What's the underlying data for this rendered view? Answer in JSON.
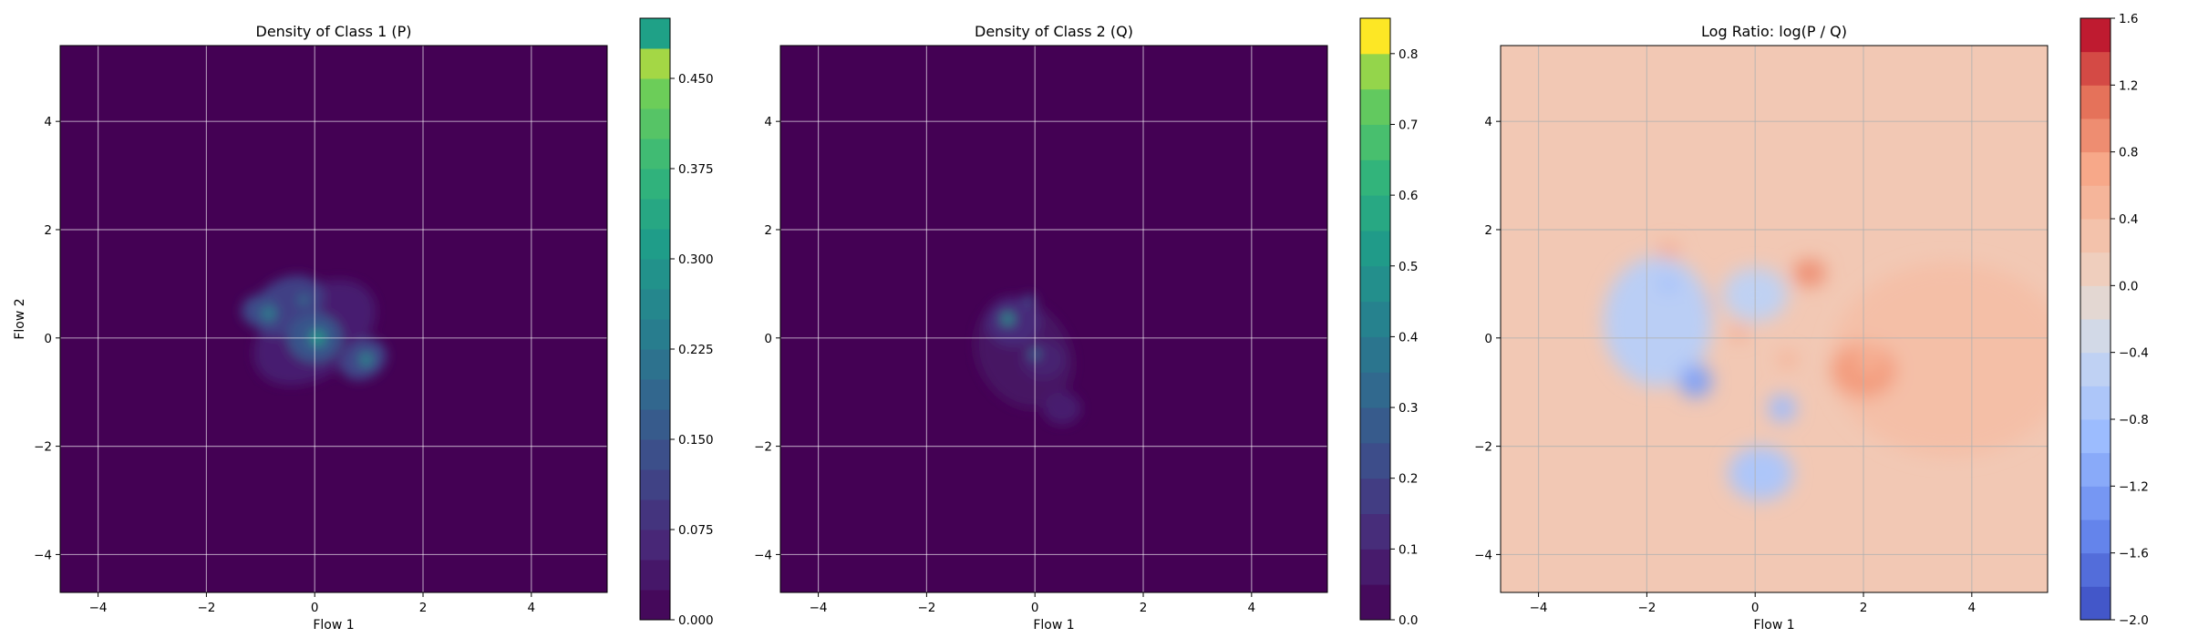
{
  "chart_data": [
    {
      "type": "heatmap",
      "title": "Density of Class 1 (P)",
      "xlabel": "Flow 1",
      "ylabel": "Flow 2",
      "xlim": [
        -4.7,
        5.4
      ],
      "ylim": [
        -4.7,
        5.4
      ],
      "xticks": [
        -4,
        -2,
        0,
        2,
        4
      ],
      "yticks": [
        -4,
        -2,
        0,
        2,
        4
      ],
      "grid": true,
      "colormap": "viridis",
      "colorbar": {
        "range": [
          0.0,
          0.5
        ],
        "ticks": [
          0.0,
          0.075,
          0.15,
          0.225,
          0.3,
          0.375,
          0.45
        ],
        "tick_labels": [
          "0.000",
          "0.075",
          "0.150",
          "0.225",
          "0.300",
          "0.375",
          "0.450"
        ],
        "levels": 20,
        "top_color": "#1fa187"
      },
      "blobs": [
        {
          "x": 0.0,
          "y": 0.1,
          "sx": 1.25,
          "sy": 0.8,
          "rot": -35,
          "value": 0.05
        },
        {
          "x": -0.5,
          "y": 0.6,
          "sx": 0.7,
          "sy": 0.5,
          "rot": -30,
          "value": 0.11
        },
        {
          "x": 0.0,
          "y": 0.0,
          "sx": 0.5,
          "sy": 0.45,
          "rot": 0,
          "value": 0.15
        },
        {
          "x": 0.9,
          "y": -0.4,
          "sx": 0.45,
          "sy": 0.35,
          "rot": -30,
          "value": 0.12
        },
        {
          "x": -1.0,
          "y": 0.5,
          "sx": 0.35,
          "sy": 0.3,
          "rot": 0,
          "value": 0.13
        },
        {
          "x": 0.05,
          "y": 0.0,
          "sx": 0.14,
          "sy": 0.14,
          "rot": 0,
          "value": 0.3
        },
        {
          "x": 0.95,
          "y": -0.4,
          "sx": 0.12,
          "sy": 0.12,
          "rot": 0,
          "value": 0.26
        },
        {
          "x": -0.85,
          "y": 0.45,
          "sx": 0.12,
          "sy": 0.12,
          "rot": 0,
          "value": 0.25
        },
        {
          "x": -0.2,
          "y": 0.7,
          "sx": 0.1,
          "sy": 0.1,
          "rot": 0,
          "value": 0.2
        }
      ]
    },
    {
      "type": "heatmap",
      "title": "Density of Class 2 (Q)",
      "xlabel": "Flow 1",
      "ylabel": "",
      "xlim": [
        -4.7,
        5.4
      ],
      "ylim": [
        -4.7,
        5.4
      ],
      "xticks": [
        -4,
        -2,
        0,
        2,
        4
      ],
      "yticks": [
        -4,
        -2,
        0,
        2,
        4
      ],
      "grid": true,
      "colormap": "viridis",
      "colorbar": {
        "range": [
          0.0,
          0.85
        ],
        "ticks": [
          0.0,
          0.1,
          0.2,
          0.3,
          0.4,
          0.5,
          0.6,
          0.7,
          0.8
        ],
        "tick_labels": [
          "0.0",
          "0.1",
          "0.2",
          "0.3",
          "0.4",
          "0.5",
          "0.6",
          "0.7",
          "0.8"
        ],
        "levels": 17,
        "top_color": "#fde725"
      },
      "blobs": [
        {
          "x": -0.2,
          "y": -0.3,
          "sx": 0.85,
          "sy": 1.05,
          "rot": -30,
          "value": 0.05
        },
        {
          "x": -0.4,
          "y": 0.3,
          "sx": 0.5,
          "sy": 0.45,
          "rot": 0,
          "value": 0.12
        },
        {
          "x": 0.15,
          "y": -0.4,
          "sx": 0.4,
          "sy": 0.35,
          "rot": 0,
          "value": 0.09
        },
        {
          "x": 0.5,
          "y": -1.3,
          "sx": 0.35,
          "sy": 0.3,
          "rot": 0,
          "value": 0.08
        },
        {
          "x": -0.5,
          "y": 0.35,
          "sx": 0.12,
          "sy": 0.12,
          "rot": 0,
          "value": 0.45
        },
        {
          "x": 0.0,
          "y": -0.3,
          "sx": 0.1,
          "sy": 0.1,
          "rot": 0,
          "value": 0.3
        },
        {
          "x": -0.1,
          "y": 0.7,
          "sx": 0.12,
          "sy": 0.1,
          "rot": 0,
          "value": 0.2
        }
      ]
    },
    {
      "type": "heatmap",
      "title": "Log Ratio: log(P / Q)",
      "xlabel": "Flow 1",
      "ylabel": "",
      "xlim": [
        -4.7,
        5.4
      ],
      "ylim": [
        -4.7,
        5.4
      ],
      "xticks": [
        -4,
        -2,
        0,
        2,
        4
      ],
      "yticks": [
        -4,
        -2,
        0,
        2,
        4
      ],
      "grid": true,
      "colormap": "coolwarm",
      "colorbar": {
        "range": [
          -2.0,
          1.6
        ],
        "ticks": [
          -2.0,
          -1.6,
          -1.2,
          -0.8,
          -0.4,
          0.0,
          0.4,
          0.8,
          1.2,
          1.6
        ],
        "tick_labels": [
          "−2.0",
          "−1.6",
          "−1.2",
          "−0.8",
          "−0.4",
          "0.0",
          "0.4",
          "0.8",
          "1.2",
          "1.6"
        ],
        "levels": 18
      },
      "background_value": 0.2,
      "blobs": [
        {
          "x": 3.6,
          "y": -0.4,
          "sx": 2.2,
          "sy": 1.8,
          "rot": 0,
          "value": 0.35
        },
        {
          "x": 2.0,
          "y": -0.6,
          "sx": 0.6,
          "sy": 0.5,
          "rot": 0,
          "value": 0.8
        },
        {
          "x": 2.1,
          "y": -0.4,
          "sx": 0.25,
          "sy": 0.3,
          "rot": 0,
          "value": 0.6
        },
        {
          "x": 1.0,
          "y": 1.2,
          "sx": 0.3,
          "sy": 0.25,
          "rot": 0,
          "value": 0.9
        },
        {
          "x": -1.0,
          "y": 0.6,
          "sx": 0.2,
          "sy": 0.2,
          "rot": 0,
          "value": 1.2
        },
        {
          "x": -1.6,
          "y": 1.6,
          "sx": 0.2,
          "sy": 0.15,
          "rot": 0,
          "value": 0.7
        },
        {
          "x": -0.3,
          "y": 0.1,
          "sx": 0.12,
          "sy": 0.12,
          "rot": 0,
          "value": 0.8
        },
        {
          "x": 0.6,
          "y": -0.4,
          "sx": 0.15,
          "sy": 0.12,
          "rot": 0,
          "value": 0.7
        },
        {
          "x": -1.8,
          "y": 0.3,
          "sx": 1.0,
          "sy": 1.2,
          "rot": 0,
          "value": -0.55
        },
        {
          "x": 0.1,
          "y": -2.5,
          "sx": 0.6,
          "sy": 0.5,
          "rot": 0,
          "value": -0.7
        },
        {
          "x": -1.1,
          "y": -0.8,
          "sx": 0.3,
          "sy": 0.3,
          "rot": 0,
          "value": -1.2
        },
        {
          "x": 0.5,
          "y": -1.3,
          "sx": 0.25,
          "sy": 0.25,
          "rot": 0,
          "value": -0.9
        },
        {
          "x": 0.0,
          "y": 0.8,
          "sx": 0.6,
          "sy": 0.5,
          "rot": 0,
          "value": -0.5
        },
        {
          "x": -1.6,
          "y": 1.0,
          "sx": 0.2,
          "sy": 0.15,
          "rot": 0,
          "value": -0.8
        }
      ]
    }
  ]
}
